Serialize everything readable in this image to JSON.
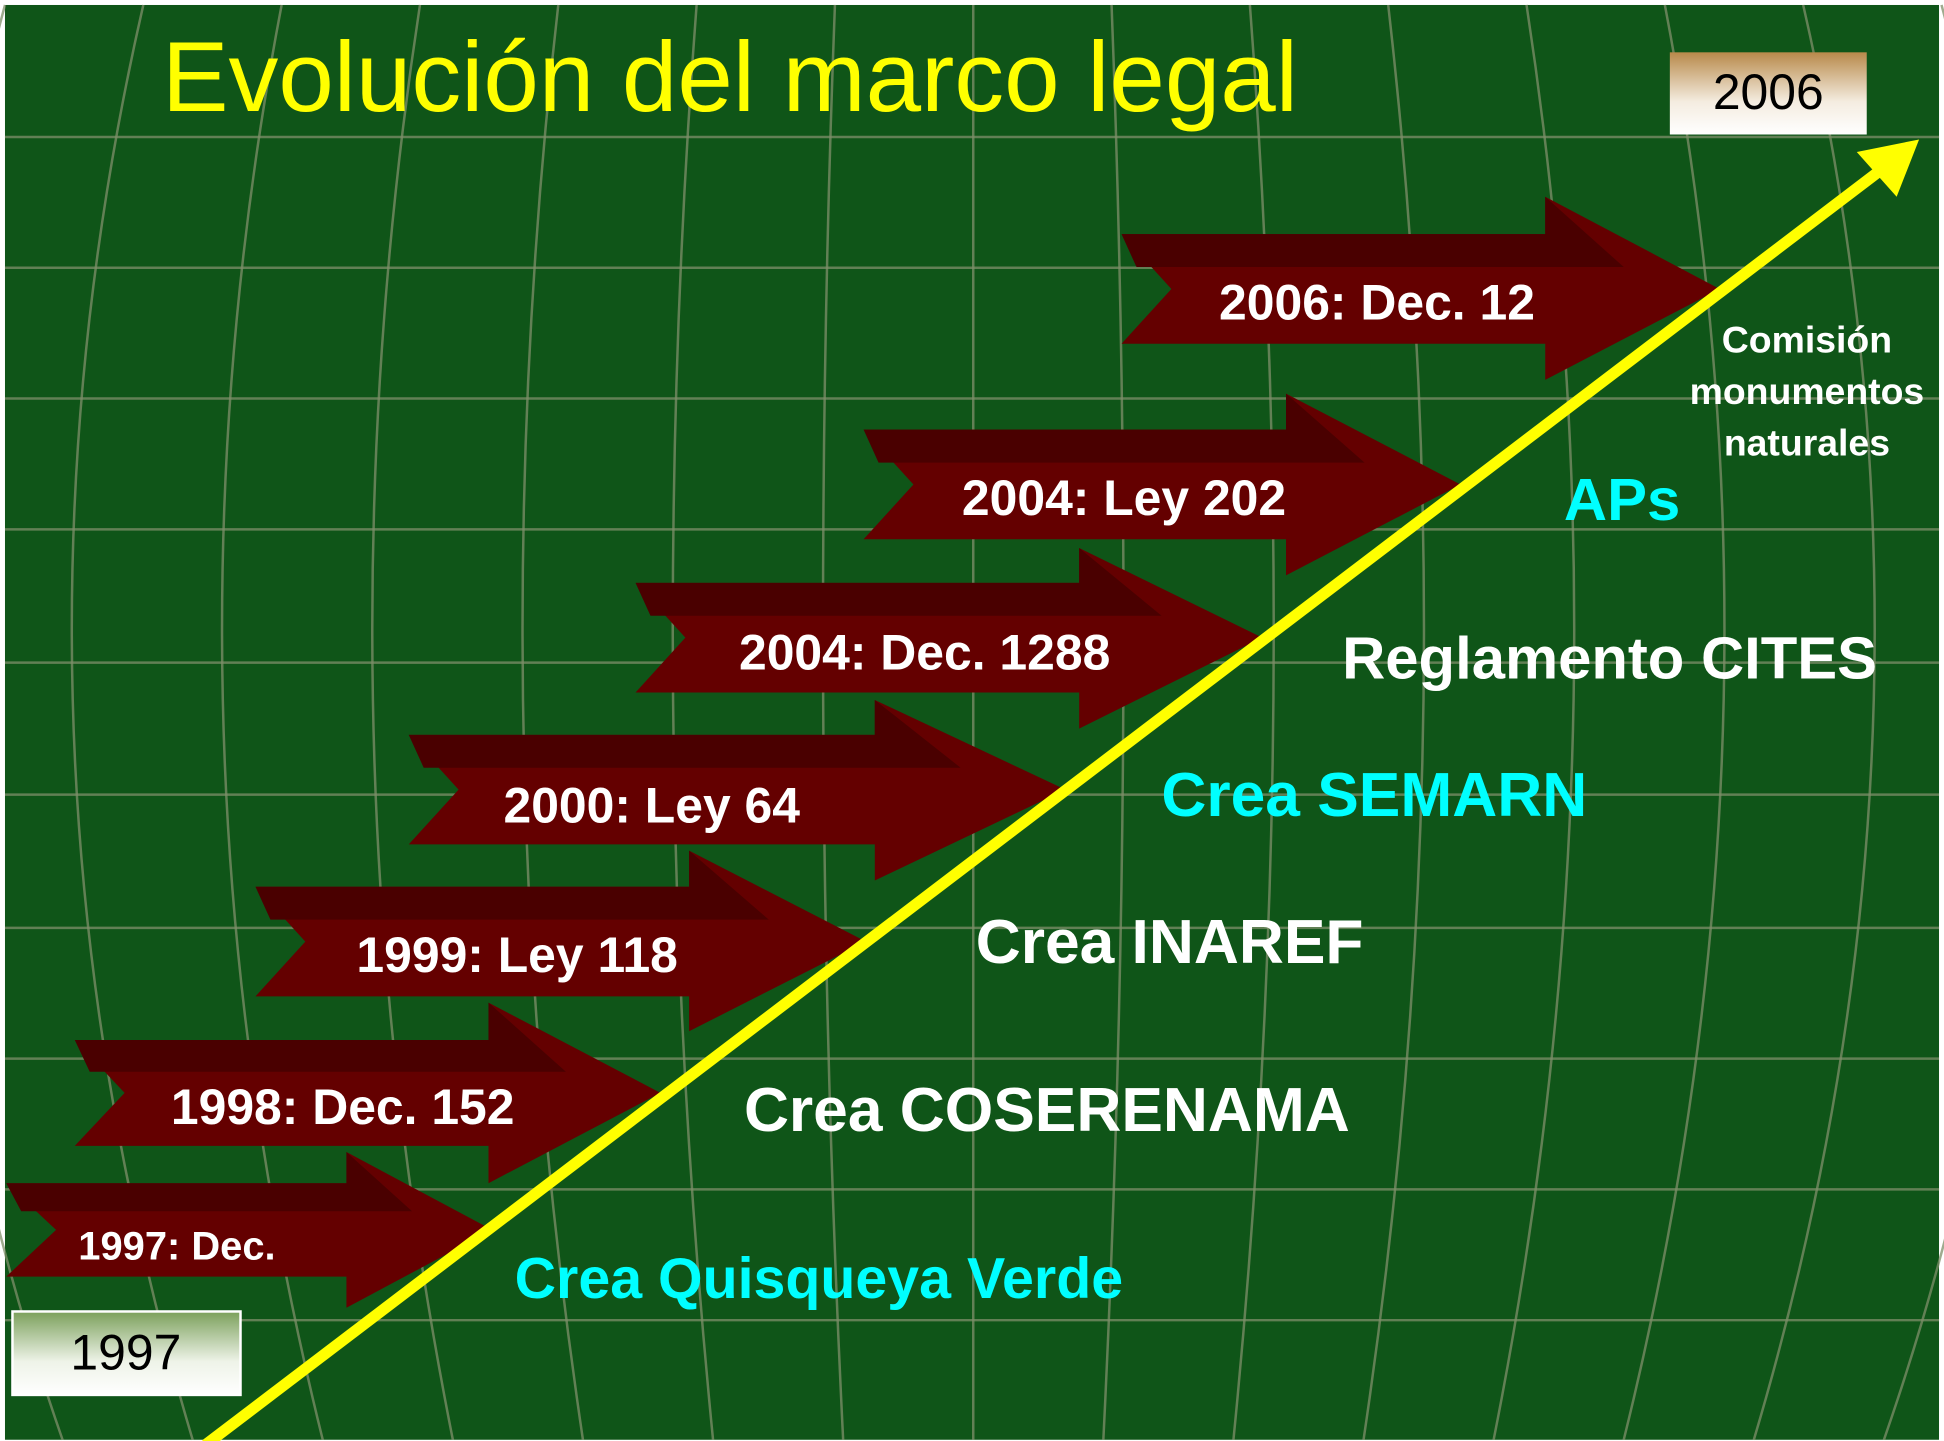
{
  "title": "Evolución del marco legal",
  "start_year": "1997",
  "end_year": "2006",
  "events": [
    {
      "label": "1997: Dec.",
      "description": [
        "Crea Quisqueya Verde"
      ],
      "color": "#00ffff"
    },
    {
      "label": "1998: Dec. 152",
      "description": [
        "Crea COSERENAMA"
      ],
      "color": "#ffffff"
    },
    {
      "label": "1999: Ley 118",
      "description": [
        "Crea INAREF"
      ],
      "color": "#ffffff"
    },
    {
      "label": "2000: Ley 64",
      "description": [
        "Crea SEMARN"
      ],
      "color": "#00ffff"
    },
    {
      "label": "2004: Dec. 1288",
      "description": [
        "Reglamento CITES"
      ],
      "color": "#ffffff"
    },
    {
      "label": "2004: Ley 202",
      "description": [
        "APs"
      ],
      "color": "#00ffff"
    },
    {
      "label": "2006: Dec. 12",
      "description": [
        "Comisión",
        "monumentos",
        "naturales"
      ],
      "color": "#ffffff"
    }
  ]
}
